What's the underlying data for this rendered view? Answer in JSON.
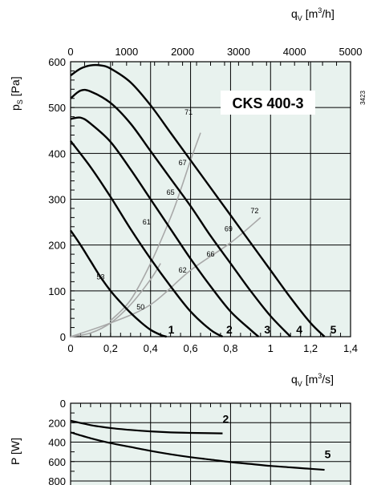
{
  "chart_data": [
    {
      "type": "line",
      "title": "CKS 400-3",
      "code": "3423",
      "xlabel": "qV [m3/s]",
      "xlabel_parts": {
        "base": "q",
        "sub": "V",
        "unit_pre": " [m",
        "sup": "3",
        "unit_post": "/s]"
      },
      "x2label_parts": {
        "base": "q",
        "sub": "V",
        "unit_pre": " [m",
        "sup": "3",
        "unit_post": "/h]"
      },
      "ylabel_parts": {
        "base": "p",
        "sub": "S",
        "unit": " [Pa]"
      },
      "xlim": [
        0,
        1.4
      ],
      "ylim": [
        0,
        600
      ],
      "x2lim": [
        0,
        5000
      ],
      "x_ticks": [
        "0",
        "0,2",
        "0,4",
        "0,6",
        "0,8",
        "1",
        "1,2",
        "1,4"
      ],
      "x_tick_values": [
        0,
        0.2,
        0.4,
        0.6,
        0.8,
        1.0,
        1.2,
        1.4
      ],
      "x2_ticks": [
        "0",
        "1000",
        "2000",
        "3000",
        "4000",
        "5000"
      ],
      "x2_tick_values": [
        0,
        1000,
        2000,
        3000,
        4000,
        5000
      ],
      "y_ticks": [
        "0",
        "100",
        "200",
        "300",
        "400",
        "500",
        "600"
      ],
      "y_tick_values": [
        0,
        100,
        200,
        300,
        400,
        500,
        600
      ],
      "grid": true,
      "series": [
        {
          "name": "1",
          "x": [
            0,
            0.05,
            0.1,
            0.15,
            0.2,
            0.25,
            0.3,
            0.35,
            0.4,
            0.45,
            0.48
          ],
          "y": [
            232,
            200,
            165,
            130,
            100,
            75,
            52,
            32,
            15,
            4,
            0
          ]
        },
        {
          "name": "2",
          "x": [
            0,
            0.1,
            0.2,
            0.3,
            0.4,
            0.5,
            0.6,
            0.7,
            0.76
          ],
          "y": [
            427,
            370,
            305,
            235,
            170,
            110,
            55,
            15,
            0
          ]
        },
        {
          "name": "3",
          "x": [
            0,
            0.05,
            0.1,
            0.2,
            0.3,
            0.4,
            0.5,
            0.6,
            0.7,
            0.8,
            0.9,
            0.94
          ],
          "y": [
            475,
            478,
            465,
            425,
            365,
            300,
            235,
            170,
            110,
            55,
            15,
            0
          ]
        },
        {
          "name": "4",
          "x": [
            0,
            0.05,
            0.1,
            0.2,
            0.3,
            0.4,
            0.5,
            0.6,
            0.7,
            0.8,
            0.9,
            1.0,
            1.1
          ],
          "y": [
            520,
            537,
            535,
            510,
            465,
            405,
            345,
            285,
            220,
            160,
            100,
            45,
            0
          ]
        },
        {
          "name": "5",
          "x": [
            0,
            0.05,
            0.1,
            0.15,
            0.2,
            0.3,
            0.4,
            0.5,
            0.6,
            0.7,
            0.8,
            0.9,
            1.0,
            1.1,
            1.2,
            1.27
          ],
          "y": [
            570,
            585,
            592,
            592,
            585,
            555,
            505,
            445,
            385,
            325,
            265,
            205,
            145,
            85,
            30,
            0
          ]
        }
      ],
      "efficiency_lines": [
        {
          "x": [
            0,
            0.1,
            0.2,
            0.3,
            0.4,
            0.45
          ],
          "y": [
            0,
            8,
            30,
            70,
            125,
            160
          ]
        },
        {
          "x": [
            0.2,
            0.3,
            0.4,
            0.5,
            0.55,
            0.6,
            0.65
          ],
          "y": [
            35,
            80,
            160,
            260,
            320,
            385,
            445
          ]
        },
        {
          "x": [
            0,
            0.2,
            0.4,
            0.6,
            0.8,
            0.95
          ],
          "y": [
            0,
            30,
            70,
            145,
            205,
            260
          ]
        }
      ],
      "efficiency_labels": [
        {
          "text": "53",
          "x": 0.15,
          "y": 130
        },
        {
          "text": "50",
          "x": 0.35,
          "y": 65
        },
        {
          "text": "61",
          "x": 0.38,
          "y": 250
        },
        {
          "text": "62",
          "x": 0.56,
          "y": 145
        },
        {
          "text": "65",
          "x": 0.5,
          "y": 315
        },
        {
          "text": "66",
          "x": 0.7,
          "y": 180
        },
        {
          "text": "67",
          "x": 0.56,
          "y": 380
        },
        {
          "text": "69",
          "x": 0.79,
          "y": 235
        },
        {
          "text": "71",
          "x": 0.59,
          "y": 490
        },
        {
          "text": "72",
          "x": 0.92,
          "y": 275
        }
      ],
      "curve_labels": [
        {
          "text": "1",
          "x": 0.48,
          "y": 0
        },
        {
          "text": "2",
          "x": 0.77,
          "y": 0
        },
        {
          "text": "3",
          "x": 0.96,
          "y": 0
        },
        {
          "text": "4",
          "x": 1.12,
          "y": 0
        },
        {
          "text": "5",
          "x": 1.29,
          "y": 0
        }
      ]
    },
    {
      "type": "line",
      "ylabel": "P [W]",
      "xlim": [
        0,
        1.4
      ],
      "ylim": [
        0,
        800
      ],
      "y_ticks": [
        "0",
        "200",
        "400",
        "600",
        "800"
      ],
      "y_tick_values": [
        0,
        200,
        400,
        600,
        800
      ],
      "grid": true,
      "series": [
        {
          "name": "2",
          "x": [
            0,
            0.1,
            0.2,
            0.3,
            0.4,
            0.5,
            0.6,
            0.76
          ],
          "y": [
            180,
            225,
            255,
            275,
            290,
            300,
            305,
            310
          ]
        },
        {
          "name": "5",
          "x": [
            0,
            0.1,
            0.2,
            0.3,
            0.4,
            0.5,
            0.6,
            0.7,
            0.8,
            0.9,
            1.0,
            1.1,
            1.2,
            1.27
          ],
          "y": [
            300,
            360,
            410,
            450,
            490,
            525,
            555,
            580,
            605,
            625,
            645,
            660,
            675,
            685
          ]
        }
      ],
      "curve_labels": [
        {
          "text": "2",
          "x": 0.76,
          "y": 200
        },
        {
          "text": "5",
          "x": 1.27,
          "y": 565
        }
      ]
    }
  ]
}
